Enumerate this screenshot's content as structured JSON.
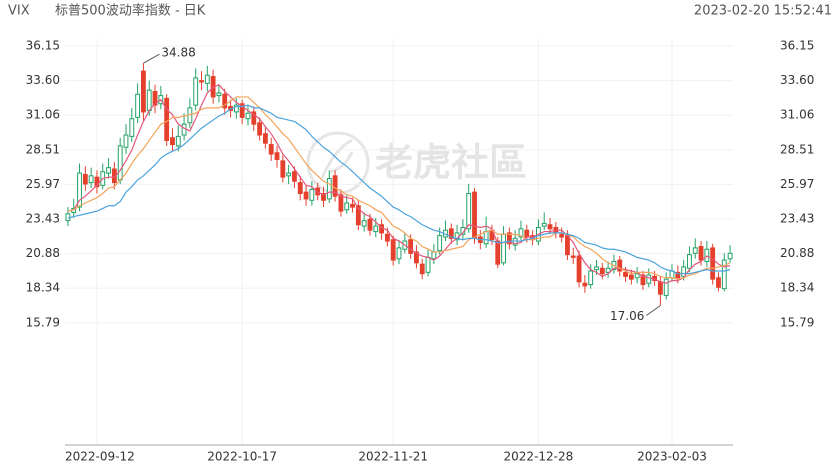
{
  "header": {
    "symbol": "VIX",
    "name": "标普500波动率指数 - 日K",
    "timestamp": "2023-02-20 15:52:41"
  },
  "watermark": "老虎社區",
  "chart_data": {
    "type": "candlestick",
    "categories": [
      null,
      null,
      null,
      null,
      null,
      "2022-09-12",
      null,
      null,
      null,
      null,
      null,
      null,
      null,
      null,
      null,
      null,
      null,
      null,
      null,
      null,
      null,
      null,
      null,
      null,
      null,
      null,
      null,
      null,
      null,
      null,
      "2022-10-17",
      null,
      null,
      null,
      null,
      null,
      null,
      null,
      null,
      null,
      null,
      null,
      null,
      null,
      null,
      null,
      null,
      null,
      null,
      null,
      null,
      null,
      null,
      null,
      null,
      null,
      "2022-11-21",
      null,
      null,
      null,
      null,
      null,
      null,
      null,
      null,
      null,
      null,
      null,
      null,
      null,
      null,
      null,
      null,
      null,
      null,
      null,
      null,
      null,
      null,
      null,
      null,
      "2022-12-28",
      null,
      null,
      null,
      null,
      null,
      null,
      null,
      null,
      null,
      null,
      null,
      null,
      null,
      null,
      null,
      null,
      null,
      null,
      null,
      null,
      null,
      null,
      "2023-02-03",
      null,
      null,
      null,
      null,
      null,
      null,
      null,
      null,
      null,
      null
    ],
    "open": [
      23.3,
      23.9,
      24.3,
      26.7,
      26.1,
      26.5,
      25.9,
      26.8,
      27.1,
      26.3,
      28.7,
      29.5,
      30.9,
      34.3,
      31.4,
      32.8,
      31.9,
      32.3,
      29.4,
      28.8,
      29.6,
      30.5,
      31.8,
      33.6,
      33.4,
      33.9,
      32.5,
      32.6,
      31.7,
      31.3,
      31.9,
      30.8,
      31.3,
      30.5,
      29.7,
      28.9,
      28.3,
      27.7,
      26.6,
      26.9,
      26.1,
      25.4,
      24.8,
      25.7,
      25.3,
      24.9,
      26.6,
      25.2,
      24.1,
      24.5,
      24.4,
      22.9,
      23.4,
      22.5,
      23.0,
      22.3,
      21.9,
      20.5,
      21.2,
      21.9,
      21.0,
      20.1,
      19.5,
      20.5,
      21.1,
      22.1,
      22.7,
      21.9,
      22.3,
      22.7,
      25.4,
      22.1,
      21.6,
      22.6,
      21.8,
      20.2,
      22.4,
      21.5,
      22.1,
      22.6,
      22.2,
      21.8,
      22.9,
      23.0,
      22.8,
      22.3,
      22.2,
      20.7,
      20.7,
      18.7,
      18.6,
      19.7,
      19.8,
      19.5,
      19.7,
      20.4,
      19.5,
      19.3,
      19.1,
      19.3,
      18.7,
      19.2,
      18.8,
      17.8,
      19.1,
      19.5,
      19.2,
      19.8,
      20.9,
      21.4,
      20.3,
      21.3,
      19.1,
      18.3,
      20.5
    ],
    "high": [
      24.3,
      24.9,
      27.5,
      27.3,
      27.2,
      27.0,
      27.5,
      27.9,
      27.6,
      29.4,
      30.4,
      31.6,
      33.4,
      34.88,
      33.6,
      33.3,
      33.2,
      32.6,
      30.1,
      30.3,
      31.2,
      32.3,
      34.5,
      34.3,
      34.7,
      34.4,
      33.3,
      33.0,
      32.2,
      32.3,
      32.2,
      31.8,
      31.7,
      30.9,
      30.2,
      29.4,
      28.8,
      28.1,
      27.4,
      27.3,
      26.6,
      25.9,
      26.2,
      26.1,
      25.8,
      27.0,
      27.0,
      25.6,
      25.2,
      25.0,
      24.8,
      23.9,
      23.8,
      23.5,
      23.4,
      22.8,
      22.2,
      21.9,
      22.4,
      22.3,
      21.5,
      20.5,
      21.2,
      21.6,
      22.8,
      23.3,
      23.1,
      23.0,
      23.4,
      26.0,
      25.7,
      22.6,
      23.6,
      23.0,
      22.1,
      22.9,
      22.8,
      22.6,
      23.3,
      23.0,
      22.6,
      23.4,
      23.9,
      23.5,
      23.2,
      22.8,
      22.6,
      21.3,
      21.1,
      19.3,
      20.1,
      20.4,
      20.2,
      20.3,
      20.8,
      20.7,
      19.9,
      19.7,
      19.9,
      19.6,
      19.8,
      19.6,
      19.2,
      19.5,
      20.1,
      20.0,
      20.4,
      21.4,
      22.0,
      21.8,
      21.8,
      21.6,
      19.5,
      20.9,
      21.5
    ],
    "low": [
      22.9,
      23.5,
      24.0,
      25.5,
      25.7,
      25.3,
      25.6,
      26.4,
      25.6,
      26.0,
      28.2,
      29.1,
      30.5,
      30.6,
      31.0,
      31.2,
      31.5,
      28.8,
      28.4,
      28.4,
      29.2,
      30.1,
      31.4,
      32.9,
      32.8,
      31.9,
      32.0,
      31.1,
      30.9,
      30.8,
      30.4,
      30.3,
      29.9,
      29.2,
      28.6,
      27.7,
      27.2,
      26.1,
      26.0,
      25.7,
      24.8,
      24.4,
      24.4,
      24.8,
      24.3,
      24.6,
      24.7,
      23.6,
      23.8,
      23.9,
      22.6,
      22.5,
      22.2,
      22.1,
      21.9,
      21.4,
      20.0,
      20.1,
      20.9,
      20.5,
      19.8,
      19.0,
      19.2,
      20.1,
      20.8,
      21.8,
      21.6,
      21.5,
      21.9,
      22.4,
      21.6,
      21.2,
      21.3,
      21.5,
      19.8,
      20.0,
      21.2,
      21.1,
      21.8,
      21.7,
      21.5,
      21.5,
      22.6,
      22.3,
      22.0,
      21.7,
      20.4,
      20.1,
      18.4,
      18.0,
      18.3,
      19.3,
      19.0,
      19.1,
      19.4,
      19.2,
      18.8,
      18.6,
      18.7,
      18.2,
      18.4,
      18.5,
      17.06,
      17.5,
      18.8,
      18.7,
      18.9,
      19.5,
      20.5,
      20.0,
      19.9,
      18.6,
      18.1,
      18.1,
      20.2
    ],
    "close": [
      23.8,
      24.2,
      26.8,
      26.0,
      26.6,
      25.8,
      26.9,
      27.2,
      26.1,
      28.8,
      29.6,
      30.8,
      32.6,
      31.3,
      32.9,
      31.8,
      32.5,
      29.2,
      28.9,
      29.5,
      30.4,
      31.6,
      33.8,
      33.5,
      34.0,
      32.4,
      32.7,
      31.6,
      31.4,
      31.8,
      30.9,
      31.2,
      30.4,
      29.6,
      29.0,
      28.2,
      27.8,
      26.5,
      26.8,
      26.2,
      25.3,
      24.9,
      25.6,
      25.2,
      24.8,
      26.4,
      25.1,
      24.0,
      24.6,
      24.3,
      23.0,
      23.3,
      22.6,
      22.9,
      22.4,
      21.8,
      20.4,
      21.3,
      21.8,
      20.9,
      20.2,
      19.4,
      20.6,
      21.0,
      22.2,
      22.6,
      22.0,
      22.4,
      22.8,
      25.3,
      22.0,
      21.7,
      22.5,
      21.9,
      20.1,
      22.3,
      21.6,
      22.0,
      22.7,
      22.1,
      21.9,
      22.8,
      23.1,
      22.7,
      22.4,
      22.1,
      20.8,
      20.6,
      18.8,
      18.5,
      19.6,
      19.9,
      19.4,
      19.8,
      20.3,
      19.6,
      19.2,
      19.0,
      19.4,
      18.6,
      19.3,
      18.9,
      17.9,
      19.0,
      19.6,
      19.1,
      19.9,
      20.8,
      21.3,
      20.4,
      21.2,
      19.0,
      18.4,
      20.4,
      20.9
    ],
    "up_color": "#21a366",
    "down_color": "#e5402d",
    "series": [
      {
        "color": "#e4577c",
        "values": [
          24.0,
          24.1,
          24.8,
          25.1,
          25.5,
          25.9,
          26.4,
          26.5,
          26.5,
          27.0,
          27.7,
          28.5,
          29.6,
          30.6,
          31.4,
          31.9,
          32.2,
          31.5,
          31.1,
          30.4,
          30.1,
          29.9,
          30.8,
          31.8,
          32.7,
          33.1,
          33.3,
          32.8,
          32.4,
          32.0,
          31.7,
          31.4,
          31.1,
          30.8,
          30.2,
          29.7,
          29.0,
          28.2,
          27.7,
          27.1,
          26.5,
          25.9,
          25.8,
          25.4,
          25.2,
          25.4,
          25.4,
          25.1,
          25.0,
          24.9,
          24.2,
          23.8,
          23.6,
          23.2,
          22.8,
          22.6,
          22.0,
          21.8,
          21.5,
          21.2,
          20.9,
          20.7,
          20.6,
          20.4,
          20.7,
          21.2,
          21.7,
          22.0,
          22.4,
          23.0,
          22.9,
          22.8,
          22.9,
          22.7,
          21.6,
          21.7,
          21.7,
          21.6,
          21.7,
          22.1,
          22.1,
          22.3,
          22.5,
          22.5,
          22.6,
          22.6,
          22.2,
          21.7,
          20.9,
          20.2,
          19.7,
          19.5,
          19.2,
          19.4,
          19.8,
          19.8,
          19.7,
          19.6,
          19.5,
          19.2,
          19.1,
          19.0,
          18.8,
          18.7,
          18.9,
          18.9,
          19.1,
          19.7,
          20.1,
          20.3,
          20.7,
          20.5,
          20.1,
          19.9,
          20.0
        ]
      },
      {
        "color": "#f3a35b",
        "values": [
          24.0,
          24.1,
          24.4,
          24.6,
          24.8,
          25.0,
          25.3,
          25.7,
          25.8,
          26.3,
          26.8,
          27.5,
          28.1,
          28.6,
          29.2,
          29.8,
          30.4,
          30.6,
          30.9,
          30.9,
          31.0,
          31.1,
          31.2,
          31.5,
          31.6,
          31.6,
          31.6,
          31.8,
          32.1,
          32.4,
          32.4,
          32.4,
          32.0,
          31.6,
          31.1,
          30.7,
          30.2,
          29.7,
          29.3,
          28.7,
          28.1,
          27.5,
          27.0,
          26.6,
          26.2,
          26.0,
          25.7,
          25.5,
          25.2,
          25.1,
          24.8,
          24.6,
          24.4,
          24.1,
          23.9,
          23.4,
          22.9,
          22.7,
          22.4,
          22.0,
          21.8,
          21.4,
          21.2,
          21.0,
          21.0,
          21.1,
          21.2,
          21.3,
          21.4,
          21.9,
          22.1,
          22.3,
          22.5,
          22.6,
          22.3,
          22.3,
          22.3,
          22.3,
          22.2,
          21.9,
          21.9,
          22.0,
          22.1,
          22.1,
          22.4,
          22.4,
          22.3,
          22.1,
          21.7,
          21.4,
          21.2,
          20.9,
          20.5,
          20.2,
          20.0,
          19.8,
          19.6,
          19.4,
          19.5,
          19.5,
          19.5,
          19.4,
          19.2,
          19.1,
          19.1,
          19.0,
          19.1,
          19.3,
          19.4,
          19.6,
          19.8,
          19.8,
          19.9,
          20.0,
          20.2
        ]
      },
      {
        "color": "#4ba3dd",
        "values": [
          23.5,
          23.6,
          23.7,
          23.8,
          23.9,
          24.0,
          24.2,
          24.4,
          24.4,
          24.7,
          25.4,
          25.8,
          26.3,
          26.6,
          27.0,
          27.4,
          27.9,
          28.2,
          28.4,
          28.6,
          28.9,
          29.3,
          29.7,
          30.1,
          30.4,
          30.7,
          31.0,
          31.2,
          31.5,
          31.7,
          31.7,
          31.8,
          31.6,
          31.6,
          31.4,
          31.2,
          30.9,
          30.8,
          30.7,
          30.6,
          30.3,
          30.0,
          29.5,
          29.1,
          28.7,
          28.4,
          28.0,
          27.6,
          27.3,
          26.9,
          26.5,
          26.1,
          25.7,
          25.4,
          25.1,
          24.7,
          24.3,
          24.1,
          23.8,
          23.6,
          23.3,
          23.0,
          22.8,
          22.6,
          22.5,
          22.3,
          22.1,
          22.0,
          21.9,
          22.0,
          22.0,
          21.9,
          21.9,
          21.8,
          21.7,
          21.7,
          21.8,
          21.8,
          21.8,
          21.9,
          22.0,
          22.2,
          22.3,
          22.4,
          22.4,
          22.4,
          22.3,
          22.2,
          22.0,
          21.7,
          21.6,
          21.5,
          21.3,
          21.2,
          21.2,
          21.1,
          21.0,
          20.8,
          20.6,
          20.5,
          20.4,
          20.2,
          19.9,
          19.7,
          19.6,
          19.4,
          19.4,
          19.4,
          19.5,
          19.6,
          19.7,
          19.6,
          19.6,
          19.6,
          19.7
        ]
      }
    ],
    "ylim": [
      6.8,
      36.7
    ],
    "yticks": [
      36.15,
      {
        "value": 33.6,
        "label": "33.60"
      },
      31.06,
      28.51,
      25.97,
      23.43,
      20.88,
      18.34,
      15.79
    ],
    "grid": true
  }
}
